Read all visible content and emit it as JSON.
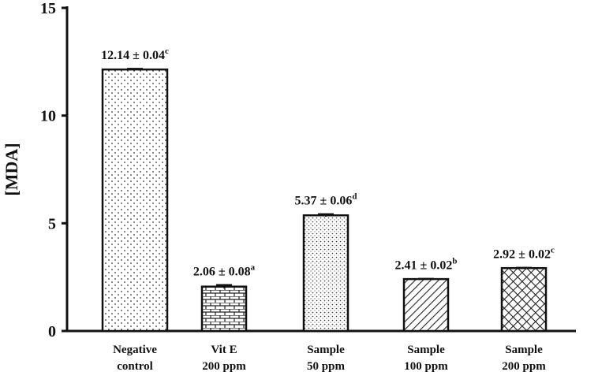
{
  "chart_data": {
    "type": "bar",
    "ylabel": "[MDA]",
    "categories": [
      "Negative\ncontrol",
      "Vit E\n200 ppm",
      "Sample\n50 ppm",
      "Sample\n100 ppm",
      "Sample\n200 ppm"
    ],
    "values": [
      12.14,
      2.06,
      5.37,
      2.41,
      2.92
    ],
    "errors": [
      0.04,
      0.08,
      0.06,
      0.02,
      0.02
    ],
    "value_labels": [
      "12.14 ± 0.04",
      "2.06 ± 0.08",
      "5.37 ± 0.06",
      "2.41 ± 0.02",
      "2.92 ± 0.02"
    ],
    "superscripts": [
      "c",
      "a",
      "d",
      "b",
      "c"
    ],
    "color": "#111111",
    "ylim": [
      0,
      15
    ],
    "yticks": [
      0,
      5,
      10,
      15
    ],
    "grid": false
  }
}
